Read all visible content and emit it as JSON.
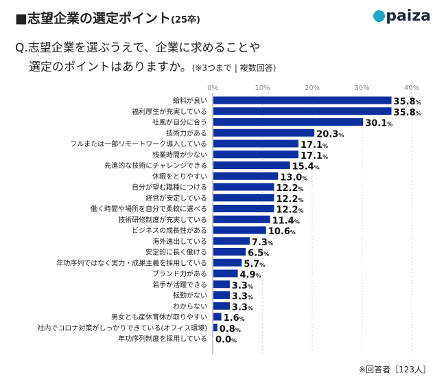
{
  "header": {
    "title": "■志望企業の選定ポイント",
    "title_suffix": "(25卒)",
    "logo": "paiza"
  },
  "question": {
    "line1": "Q.志望企業を選ぶうえで、企業に求めることや",
    "line2": "選定のポイントはありますか。",
    "note": "(※3つまで | 複数回答)"
  },
  "footer": "※回答者［123人］",
  "colors": {
    "bar": "#0e2f9e",
    "grid": "#bbbbbb"
  },
  "chart_data": {
    "type": "bar",
    "orientation": "horizontal",
    "xlim": [
      0,
      40
    ],
    "ticks": [
      "0%",
      "10%",
      "20%",
      "30%",
      "40%"
    ],
    "tick_values": [
      0,
      10,
      20,
      30,
      40
    ],
    "unit": "%",
    "categories": [
      "給料が良い",
      "福利厚生が充実している",
      "社風が自分に合う",
      "技術力がある",
      "フルまたは一部リモートワーク導入している",
      "残業時間が少ない",
      "先進的な技術にチャレンジできる",
      "休暇をとりやすい",
      "自分が望む職種につける",
      "経営が安定している",
      "働く時間や場所を自分で柔軟に選べる",
      "技術研修制度が充実している",
      "ビジネスの成長性がある",
      "海外進出している",
      "安定的に長く働ける",
      "年功序列ではなく実力・成果主義を採用している",
      "ブランド力がある",
      "若手が活躍できる",
      "転勤がない",
      "わからない",
      "男女とも産休育休が取りやすい",
      "社内でコロナ対策がしっかりできている(オフィス環境)",
      "年功序列制度を採用している"
    ],
    "values": [
      35.8,
      35.8,
      30.1,
      20.3,
      17.1,
      17.1,
      15.4,
      13.0,
      12.2,
      12.2,
      12.2,
      11.4,
      10.6,
      7.3,
      6.5,
      5.7,
      4.9,
      3.3,
      3.3,
      3.3,
      1.6,
      0.8,
      0.0
    ]
  }
}
